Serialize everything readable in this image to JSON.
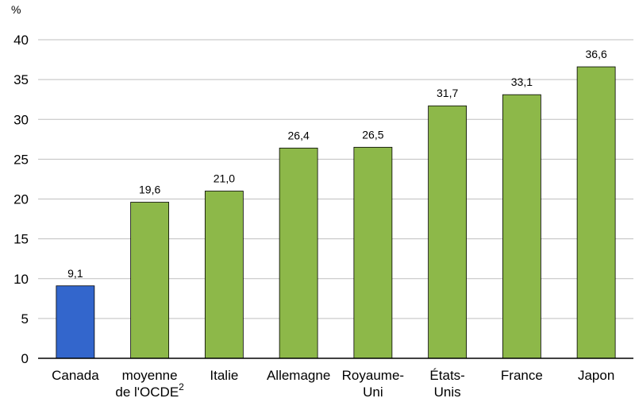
{
  "chart_data": {
    "type": "bar",
    "unit_label": "%",
    "categories": [
      {
        "lines": [
          "Canada"
        ],
        "sup": ""
      },
      {
        "lines": [
          "moyenne",
          "de l'OCDE"
        ],
        "sup": "2"
      },
      {
        "lines": [
          "Italie"
        ],
        "sup": ""
      },
      {
        "lines": [
          "Allemagne"
        ],
        "sup": ""
      },
      {
        "lines": [
          "Royaume-",
          "Uni"
        ],
        "sup": ""
      },
      {
        "lines": [
          "États-",
          "Unis"
        ],
        "sup": ""
      },
      {
        "lines": [
          "France"
        ],
        "sup": ""
      },
      {
        "lines": [
          "Japon"
        ],
        "sup": ""
      }
    ],
    "values": [
      9.1,
      19.6,
      21.0,
      26.4,
      26.5,
      31.7,
      33.1,
      36.6
    ],
    "value_labels": [
      "9,1",
      "19,6",
      "21,0",
      "26,4",
      "26,5",
      "31,7",
      "33,1",
      "36,6"
    ],
    "bar_colors": [
      "#3366cc",
      "#8db849",
      "#8db849",
      "#8db849",
      "#8db849",
      "#8db849",
      "#8db849",
      "#8db849"
    ],
    "ylim": [
      0,
      40
    ],
    "yticks": [
      0,
      5,
      10,
      15,
      20,
      25,
      30,
      35,
      40
    ],
    "grid": true,
    "legend": "none"
  }
}
